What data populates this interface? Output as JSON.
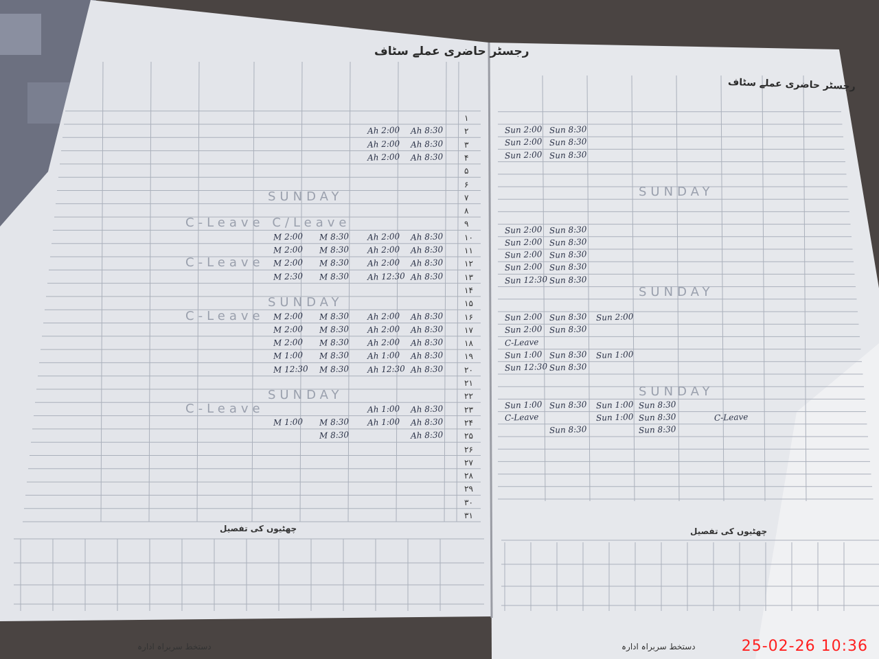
{
  "photo": {
    "subject": "attendance register, two open pages",
    "timestamp": "25-02-26 10:36",
    "colors": {
      "paper": "#e4e6ea",
      "ink": "#2c3348",
      "stamp": "#ff2020"
    }
  },
  "left_page": {
    "title": "رجسٹر حاضری عملے سٹاف",
    "row_numbers": [
      "۱",
      "۲",
      "۳",
      "۴",
      "۵",
      "۶",
      "۷",
      "۸",
      "۹",
      "۱۰",
      "۱۱",
      "۱۲",
      "۱۳",
      "۱۴",
      "۱۵",
      "۱۶",
      "۱۷",
      "۱۸",
      "۱۹",
      "۲۰",
      "۲۱",
      "۲۲",
      "۲۳",
      "۲۴",
      "۲۵",
      "۲۶",
      "۲۷",
      "۲۸",
      "۲۹",
      "۳۰",
      "۳۱"
    ],
    "banners": [
      {
        "row": 7,
        "text": "SUNDAY"
      },
      {
        "row": 9,
        "text": "C-Leave  C/Leave"
      },
      {
        "row": 12,
        "text": "C-Leave"
      },
      {
        "row": 15,
        "text": "SUNDAY"
      },
      {
        "row": 16,
        "text": "C-Leave"
      },
      {
        "row": 22,
        "text": "SUNDAY"
      },
      {
        "row": 23,
        "text": "C-Leave"
      }
    ],
    "rows": [
      {
        "row": 2,
        "cells": [
          "",
          "",
          "",
          "",
          "",
          "",
          "Ah 2:00",
          "Ah 8:30"
        ]
      },
      {
        "row": 3,
        "cells": [
          "",
          "",
          "",
          "",
          "",
          "",
          "Ah 2:00",
          "Ah 8:30"
        ]
      },
      {
        "row": 4,
        "cells": [
          "",
          "",
          "",
          "",
          "",
          "",
          "Ah 2:00",
          "Ah 8:30"
        ]
      },
      {
        "row": 10,
        "cells": [
          "",
          "",
          "",
          "",
          "M 2:00",
          "M 8:30",
          "Ah 2:00",
          "Ah 8:30"
        ]
      },
      {
        "row": 11,
        "cells": [
          "",
          "",
          "",
          "",
          "M 2:00",
          "M 8:30",
          "Ah 2:00",
          "Ah 8:30"
        ]
      },
      {
        "row": 12,
        "cells": [
          "",
          "",
          "",
          "",
          "M 2:00",
          "M 8:30",
          "Ah 2:00",
          "Ah 8:30"
        ]
      },
      {
        "row": 13,
        "cells": [
          "",
          "",
          "",
          "",
          "M 2:30",
          "M 8:30",
          "Ah 12:30",
          "Ah 8:30"
        ]
      },
      {
        "row": 16,
        "cells": [
          "",
          "",
          "",
          "",
          "M 2:00",
          "M 8:30",
          "Ah 2:00",
          "Ah 8:30"
        ]
      },
      {
        "row": 17,
        "cells": [
          "",
          "",
          "",
          "",
          "M 2:00",
          "M 8:30",
          "Ah 2:00",
          "Ah 8:30"
        ]
      },
      {
        "row": 18,
        "cells": [
          "",
          "",
          "",
          "",
          "M 2:00",
          "M 8:30",
          "Ah 2:00",
          "Ah 8:30"
        ]
      },
      {
        "row": 19,
        "cells": [
          "",
          "",
          "",
          "",
          "M 1:00",
          "M 8:30",
          "Ah 1:00",
          "Ah 8:30"
        ]
      },
      {
        "row": 20,
        "cells": [
          "",
          "",
          "",
          "",
          "M 12:30",
          "M 8:30",
          "Ah 12:30",
          "Ah 8:30"
        ]
      },
      {
        "row": 23,
        "cells": [
          "",
          "",
          "",
          "",
          "",
          "",
          "Ah 1:00",
          "Ah 8:30"
        ]
      },
      {
        "row": 24,
        "cells": [
          "",
          "",
          "",
          "",
          "M 1:00",
          "M 8:30",
          "Ah 1:00",
          "Ah 8:30"
        ]
      },
      {
        "row": 25,
        "cells": [
          "",
          "",
          "",
          "",
          "",
          "M 8:30",
          "",
          "Ah 8:30"
        ]
      }
    ],
    "footer_heading": "چھٹیوں کی تفصیل",
    "signature_label": "دستخط سربراہ ادارہ"
  },
  "right_page": {
    "title": "رجسٹر حاضری عملے سٹاف",
    "banners": [
      {
        "row": 7,
        "text": "SUNDAY"
      },
      {
        "row": 15,
        "text": "SUNDAY"
      },
      {
        "row": 23,
        "text": "SUNDAY"
      }
    ],
    "rows": [
      {
        "row": 2,
        "cells": [
          "Sun 2:00",
          "Sun 8:30",
          "",
          "",
          "",
          "",
          "",
          ""
        ]
      },
      {
        "row": 3,
        "cells": [
          "Sun 2:00",
          "Sun 8:30",
          "",
          "",
          "",
          "",
          "",
          ""
        ]
      },
      {
        "row": 4,
        "cells": [
          "Sun 2:00",
          "Sun 8:30",
          "",
          "",
          "",
          "",
          "",
          ""
        ]
      },
      {
        "row": 10,
        "cells": [
          "Sun 2:00",
          "Sun 8:30",
          "",
          "",
          "",
          "",
          "",
          ""
        ]
      },
      {
        "row": 11,
        "cells": [
          "Sun 2:00",
          "Sun 8:30",
          "",
          "",
          "",
          "",
          "",
          ""
        ]
      },
      {
        "row": 12,
        "cells": [
          "Sun 2:00",
          "Sun 8:30",
          "",
          "",
          "",
          "",
          "",
          ""
        ]
      },
      {
        "row": 13,
        "cells": [
          "Sun 2:00",
          "Sun 8:30",
          "",
          "",
          "",
          "",
          "",
          ""
        ]
      },
      {
        "row": 14,
        "cells": [
          "Sun 12:30",
          "Sun 8:30",
          "",
          "",
          "",
          "",
          "",
          ""
        ]
      },
      {
        "row": 17,
        "cells": [
          "Sun 2:00",
          "Sun 8:30",
          "Sun 2:00",
          "",
          "",
          "",
          "",
          ""
        ]
      },
      {
        "row": 18,
        "cells": [
          "Sun 2:00",
          "Sun 8:30",
          "",
          "",
          "",
          "",
          "",
          ""
        ]
      },
      {
        "row": 19,
        "cells": [
          "C-Leave",
          "",
          "",
          "",
          "",
          "",
          "",
          ""
        ]
      },
      {
        "row": 20,
        "cells": [
          "Sun 1:00",
          "Sun 8:30",
          "Sun 1:00",
          "",
          "",
          "",
          "",
          ""
        ]
      },
      {
        "row": 21,
        "cells": [
          "Sun 12:30",
          "Sun 8:30",
          "",
          "",
          "",
          "",
          "",
          ""
        ]
      },
      {
        "row": 24,
        "cells": [
          "Sun 1:00",
          "Sun 8:30",
          "Sun 1:00",
          "Sun 8:30",
          "",
          "",
          "",
          ""
        ]
      },
      {
        "row": 25,
        "cells": [
          "C-Leave",
          "",
          "Sun 1:00",
          "Sun 8:30",
          "",
          "C-Leave",
          "",
          ""
        ]
      },
      {
        "row": 26,
        "cells": [
          "",
          "Sun 8:30",
          "",
          "Sun 8:30",
          "",
          "",
          "",
          ""
        ]
      }
    ],
    "footer_heading": "چھٹیوں کی تفصیل",
    "signature_label": "دستخط سربراہ ادارہ"
  }
}
